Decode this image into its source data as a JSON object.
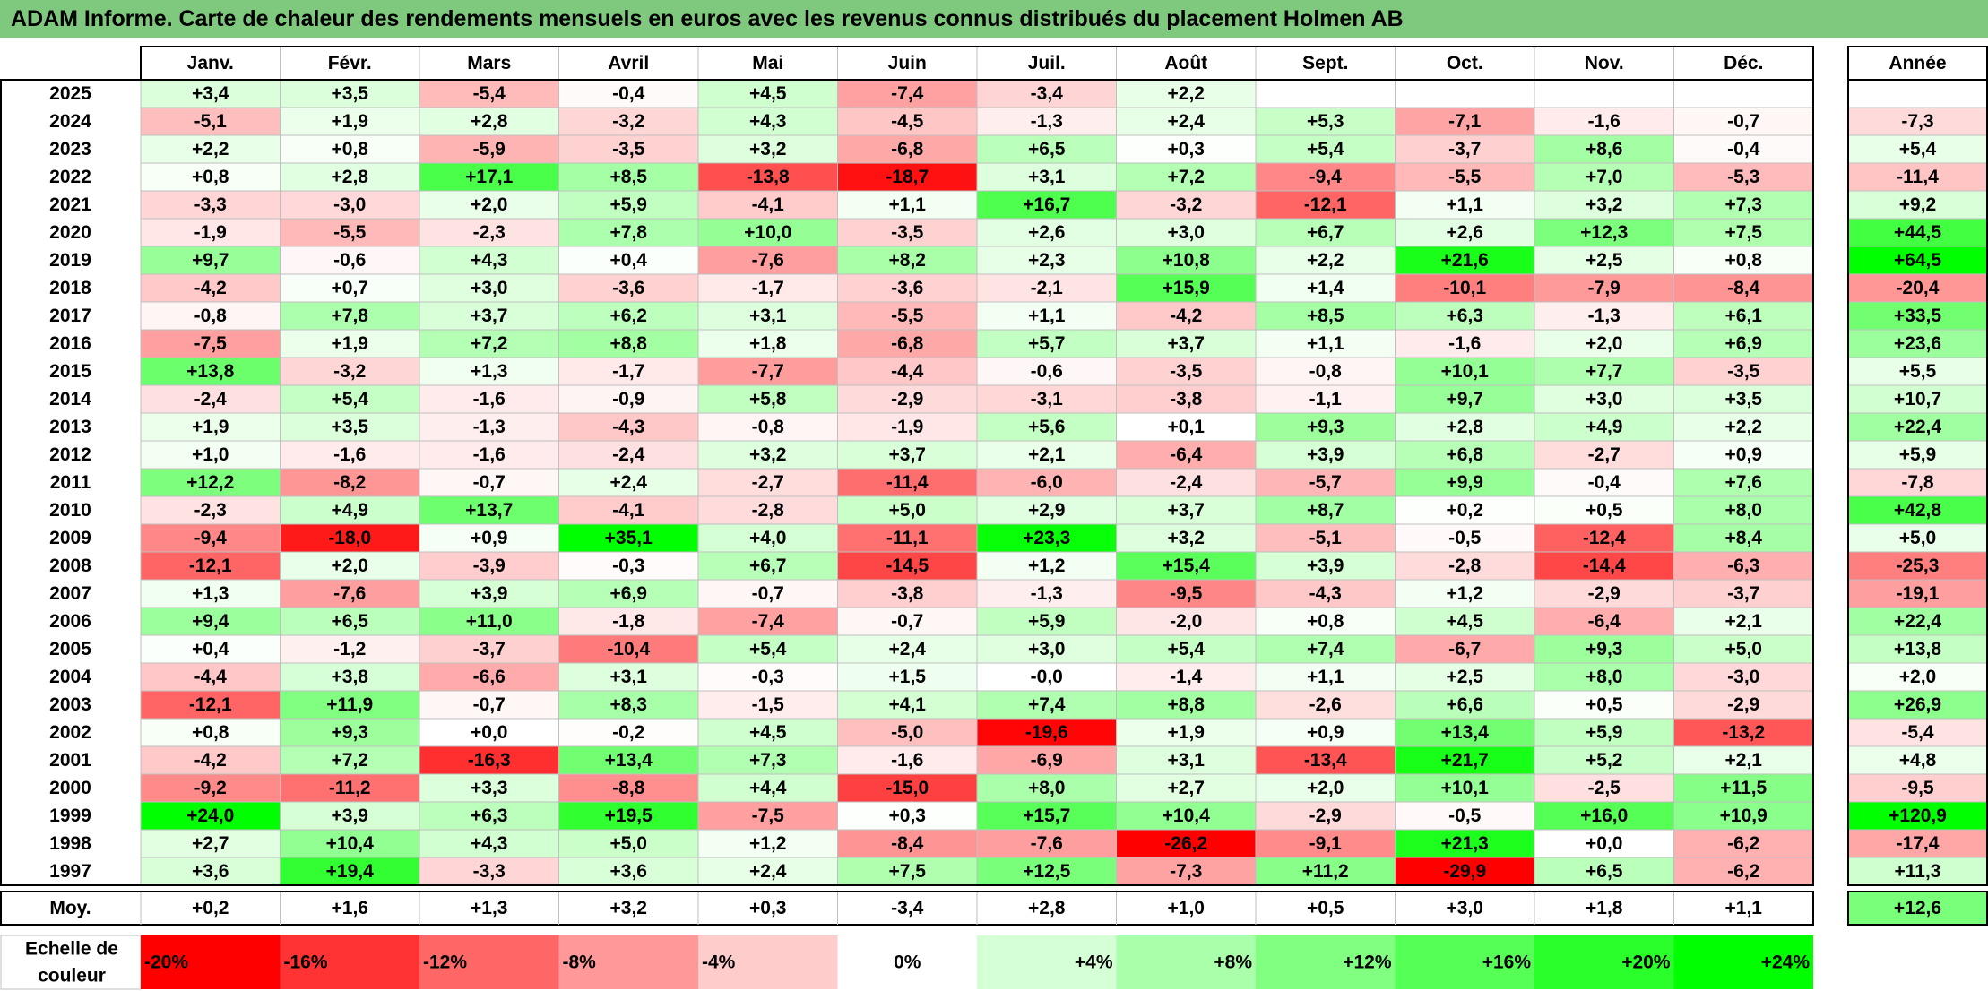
{
  "title": "ADAM Informe. Carte de chaleur des rendements mensuels en euros avec les revenus connus distribués du placement Holmen AB",
  "chart_data": {
    "type": "heatmap",
    "months": [
      "Janv.",
      "Févr.",
      "Mars",
      "Avril",
      "Mai",
      "Juin",
      "Juil.",
      "Août",
      "Sept.",
      "Oct.",
      "Nov.",
      "Déc."
    ],
    "year_header": "Année",
    "rows": [
      {
        "year": "2025",
        "values": [
          "+3,4",
          "+3,5",
          "-5,4",
          "-0,4",
          "+4,5",
          "-7,4",
          "-3,4",
          "+2,2",
          "",
          "",
          "",
          ""
        ],
        "annual": ""
      },
      {
        "year": "2024",
        "values": [
          "-5,1",
          "+1,9",
          "+2,8",
          "-3,2",
          "+4,3",
          "-4,5",
          "-1,3",
          "+2,4",
          "+5,3",
          "-7,1",
          "-1,6",
          "-0,7"
        ],
        "annual": "-7,3"
      },
      {
        "year": "2023",
        "values": [
          "+2,2",
          "+0,8",
          "-5,9",
          "-3,5",
          "+3,2",
          "-6,8",
          "+6,5",
          "+0,3",
          "+5,4",
          "-3,7",
          "+8,6",
          "-0,4"
        ],
        "annual": "+5,4"
      },
      {
        "year": "2022",
        "values": [
          "+0,8",
          "+2,8",
          "+17,1",
          "+8,5",
          "-13,8",
          "-18,7",
          "+3,1",
          "+7,2",
          "-9,4",
          "-5,5",
          "+7,0",
          "-5,3"
        ],
        "annual": "-11,4"
      },
      {
        "year": "2021",
        "values": [
          "-3,3",
          "-3,0",
          "+2,0",
          "+5,9",
          "-4,1",
          "+1,1",
          "+16,7",
          "-3,2",
          "-12,1",
          "+1,1",
          "+3,2",
          "+7,3"
        ],
        "annual": "+9,2"
      },
      {
        "year": "2020",
        "values": [
          "-1,9",
          "-5,5",
          "-2,3",
          "+7,8",
          "+10,0",
          "-3,5",
          "+2,6",
          "+3,0",
          "+6,7",
          "+2,6",
          "+12,3",
          "+7,5"
        ],
        "annual": "+44,5"
      },
      {
        "year": "2019",
        "values": [
          "+9,7",
          "-0,6",
          "+4,3",
          "+0,4",
          "-7,6",
          "+8,2",
          "+2,3",
          "+10,8",
          "+2,2",
          "+21,6",
          "+2,5",
          "+0,8"
        ],
        "annual": "+64,5"
      },
      {
        "year": "2018",
        "values": [
          "-4,2",
          "+0,7",
          "+3,0",
          "-3,6",
          "-1,7",
          "-3,6",
          "-2,1",
          "+15,9",
          "+1,4",
          "-10,1",
          "-7,9",
          "-8,4"
        ],
        "annual": "-20,4"
      },
      {
        "year": "2017",
        "values": [
          "-0,8",
          "+7,8",
          "+3,7",
          "+6,2",
          "+3,1",
          "-5,5",
          "+1,1",
          "-4,2",
          "+8,5",
          "+6,3",
          "-1,3",
          "+6,1"
        ],
        "annual": "+33,5"
      },
      {
        "year": "2016",
        "values": [
          "-7,5",
          "+1,9",
          "+7,2",
          "+8,8",
          "+1,8",
          "-6,8",
          "+5,7",
          "+3,7",
          "+1,1",
          "-1,6",
          "+2,0",
          "+6,9"
        ],
        "annual": "+23,6"
      },
      {
        "year": "2015",
        "values": [
          "+13,8",
          "-3,2",
          "+1,3",
          "-1,7",
          "-7,7",
          "-4,4",
          "-0,6",
          "-3,5",
          "-0,8",
          "+10,1",
          "+7,7",
          "-3,5"
        ],
        "annual": "+5,5"
      },
      {
        "year": "2014",
        "values": [
          "-2,4",
          "+5,4",
          "-1,6",
          "-0,9",
          "+5,8",
          "-2,9",
          "-3,1",
          "-3,8",
          "-1,1",
          "+9,7",
          "+3,0",
          "+3,5"
        ],
        "annual": "+10,7"
      },
      {
        "year": "2013",
        "values": [
          "+1,9",
          "+3,5",
          "-1,3",
          "-4,3",
          "-0,8",
          "-1,9",
          "+5,6",
          "+0,1",
          "+9,3",
          "+2,8",
          "+4,9",
          "+2,2"
        ],
        "annual": "+22,4"
      },
      {
        "year": "2012",
        "values": [
          "+1,0",
          "-1,6",
          "-1,6",
          "-2,4",
          "+3,2",
          "+3,7",
          "+2,1",
          "-6,4",
          "+3,9",
          "+6,8",
          "-2,7",
          "+0,9"
        ],
        "annual": "+5,9"
      },
      {
        "year": "2011",
        "values": [
          "+12,2",
          "-8,2",
          "-0,7",
          "+2,4",
          "-2,7",
          "-11,4",
          "-6,0",
          "-2,4",
          "-5,7",
          "+9,9",
          "-0,4",
          "+7,6"
        ],
        "annual": "-7,8"
      },
      {
        "year": "2010",
        "values": [
          "-2,3",
          "+4,9",
          "+13,7",
          "-4,1",
          "-2,8",
          "+5,0",
          "+2,9",
          "+3,7",
          "+8,7",
          "+0,2",
          "+0,5",
          "+8,0"
        ],
        "annual": "+42,8"
      },
      {
        "year": "2009",
        "values": [
          "-9,4",
          "-18,0",
          "+0,9",
          "+35,1",
          "+4,0",
          "-11,1",
          "+23,3",
          "+3,2",
          "-5,1",
          "-0,5",
          "-12,4",
          "+8,4"
        ],
        "annual": "+5,0"
      },
      {
        "year": "2008",
        "values": [
          "-12,1",
          "+2,0",
          "-3,9",
          "-0,3",
          "+6,7",
          "-14,5",
          "+1,2",
          "+15,4",
          "+3,9",
          "-2,8",
          "-14,4",
          "-6,3"
        ],
        "annual": "-25,3"
      },
      {
        "year": "2007",
        "values": [
          "+1,3",
          "-7,6",
          "+3,9",
          "+6,9",
          "-0,7",
          "-3,8",
          "-1,3",
          "-9,5",
          "-4,3",
          "+1,2",
          "-2,9",
          "-3,7"
        ],
        "annual": "-19,1"
      },
      {
        "year": "2006",
        "values": [
          "+9,4",
          "+6,5",
          "+11,0",
          "-1,8",
          "-7,4",
          "-0,7",
          "+5,9",
          "-2,0",
          "+0,8",
          "+4,5",
          "-6,4",
          "+2,1"
        ],
        "annual": "+22,4"
      },
      {
        "year": "2005",
        "values": [
          "+0,4",
          "-1,2",
          "-3,7",
          "-10,4",
          "+5,4",
          "+2,4",
          "+3,0",
          "+5,4",
          "+7,4",
          "-6,7",
          "+9,3",
          "+5,0"
        ],
        "annual": "+13,8"
      },
      {
        "year": "2004",
        "values": [
          "-4,4",
          "+3,8",
          "-6,6",
          "+3,1",
          "-0,3",
          "+1,5",
          "-0,0",
          "-1,4",
          "+1,1",
          "+2,5",
          "+8,0",
          "-3,0"
        ],
        "annual": "+2,0"
      },
      {
        "year": "2003",
        "values": [
          "-12,1",
          "+11,9",
          "-0,7",
          "+8,3",
          "-1,5",
          "+4,1",
          "+7,4",
          "+8,8",
          "-2,6",
          "+6,6",
          "+0,5",
          "-2,9"
        ],
        "annual": "+26,9"
      },
      {
        "year": "2002",
        "values": [
          "+0,8",
          "+9,3",
          "+0,0",
          "-0,2",
          "+4,5",
          "-5,0",
          "-19,6",
          "+1,9",
          "+0,9",
          "+13,4",
          "+5,9",
          "-13,2"
        ],
        "annual": "-5,4"
      },
      {
        "year": "2001",
        "values": [
          "-4,2",
          "+7,2",
          "-16,3",
          "+13,4",
          "+7,3",
          "-1,6",
          "-6,9",
          "+3,1",
          "-13,4",
          "+21,7",
          "+5,2",
          "+2,1"
        ],
        "annual": "+4,8"
      },
      {
        "year": "2000",
        "values": [
          "-9,2",
          "-11,2",
          "+3,3",
          "-8,8",
          "+4,4",
          "-15,0",
          "+8,0",
          "+2,7",
          "+2,0",
          "+10,1",
          "-2,5",
          "+11,5"
        ],
        "annual": "-9,5"
      },
      {
        "year": "1999",
        "values": [
          "+24,0",
          "+3,9",
          "+6,3",
          "+19,5",
          "-7,5",
          "+0,3",
          "+15,7",
          "+10,4",
          "-2,9",
          "-0,5",
          "+16,0",
          "+10,9"
        ],
        "annual": "+120,9"
      },
      {
        "year": "1998",
        "values": [
          "+2,7",
          "+10,4",
          "+4,3",
          "+5,0",
          "+1,2",
          "-8,4",
          "-7,6",
          "-26,2",
          "-9,1",
          "+21,3",
          "+0,0",
          "-6,2"
        ],
        "annual": "-17,4"
      },
      {
        "year": "1997",
        "values": [
          "+3,6",
          "+19,4",
          "-3,3",
          "+3,6",
          "+2,4",
          "+7,5",
          "+12,5",
          "-7,3",
          "+11,2",
          "-29,9",
          "+6,5",
          "-6,2"
        ],
        "annual": "+11,3"
      }
    ],
    "average": {
      "label": "Moy.",
      "values": [
        "+0,2",
        "+1,6",
        "+1,3",
        "+3,2",
        "+0,3",
        "-3,4",
        "+2,8",
        "+1,0",
        "+0,5",
        "+3,0",
        "+1,8",
        "+1,1"
      ],
      "annual": "+12,6"
    },
    "scale": {
      "label_line1": "Echelle de",
      "label_line2": "couleur",
      "steps": [
        "-20%",
        "-16%",
        "-12%",
        "-8%",
        "-4%",
        "0%",
        "+4%",
        "+8%",
        "+12%",
        "+16%",
        "+20%",
        "+24%"
      ]
    },
    "colors": {
      "title_bar": "#7fc97f",
      "max_negative": "#ff0000",
      "neutral": "#ffffff",
      "max_positive": "#00ff00",
      "grid": "#bfbfbf",
      "border": "#000000"
    }
  }
}
